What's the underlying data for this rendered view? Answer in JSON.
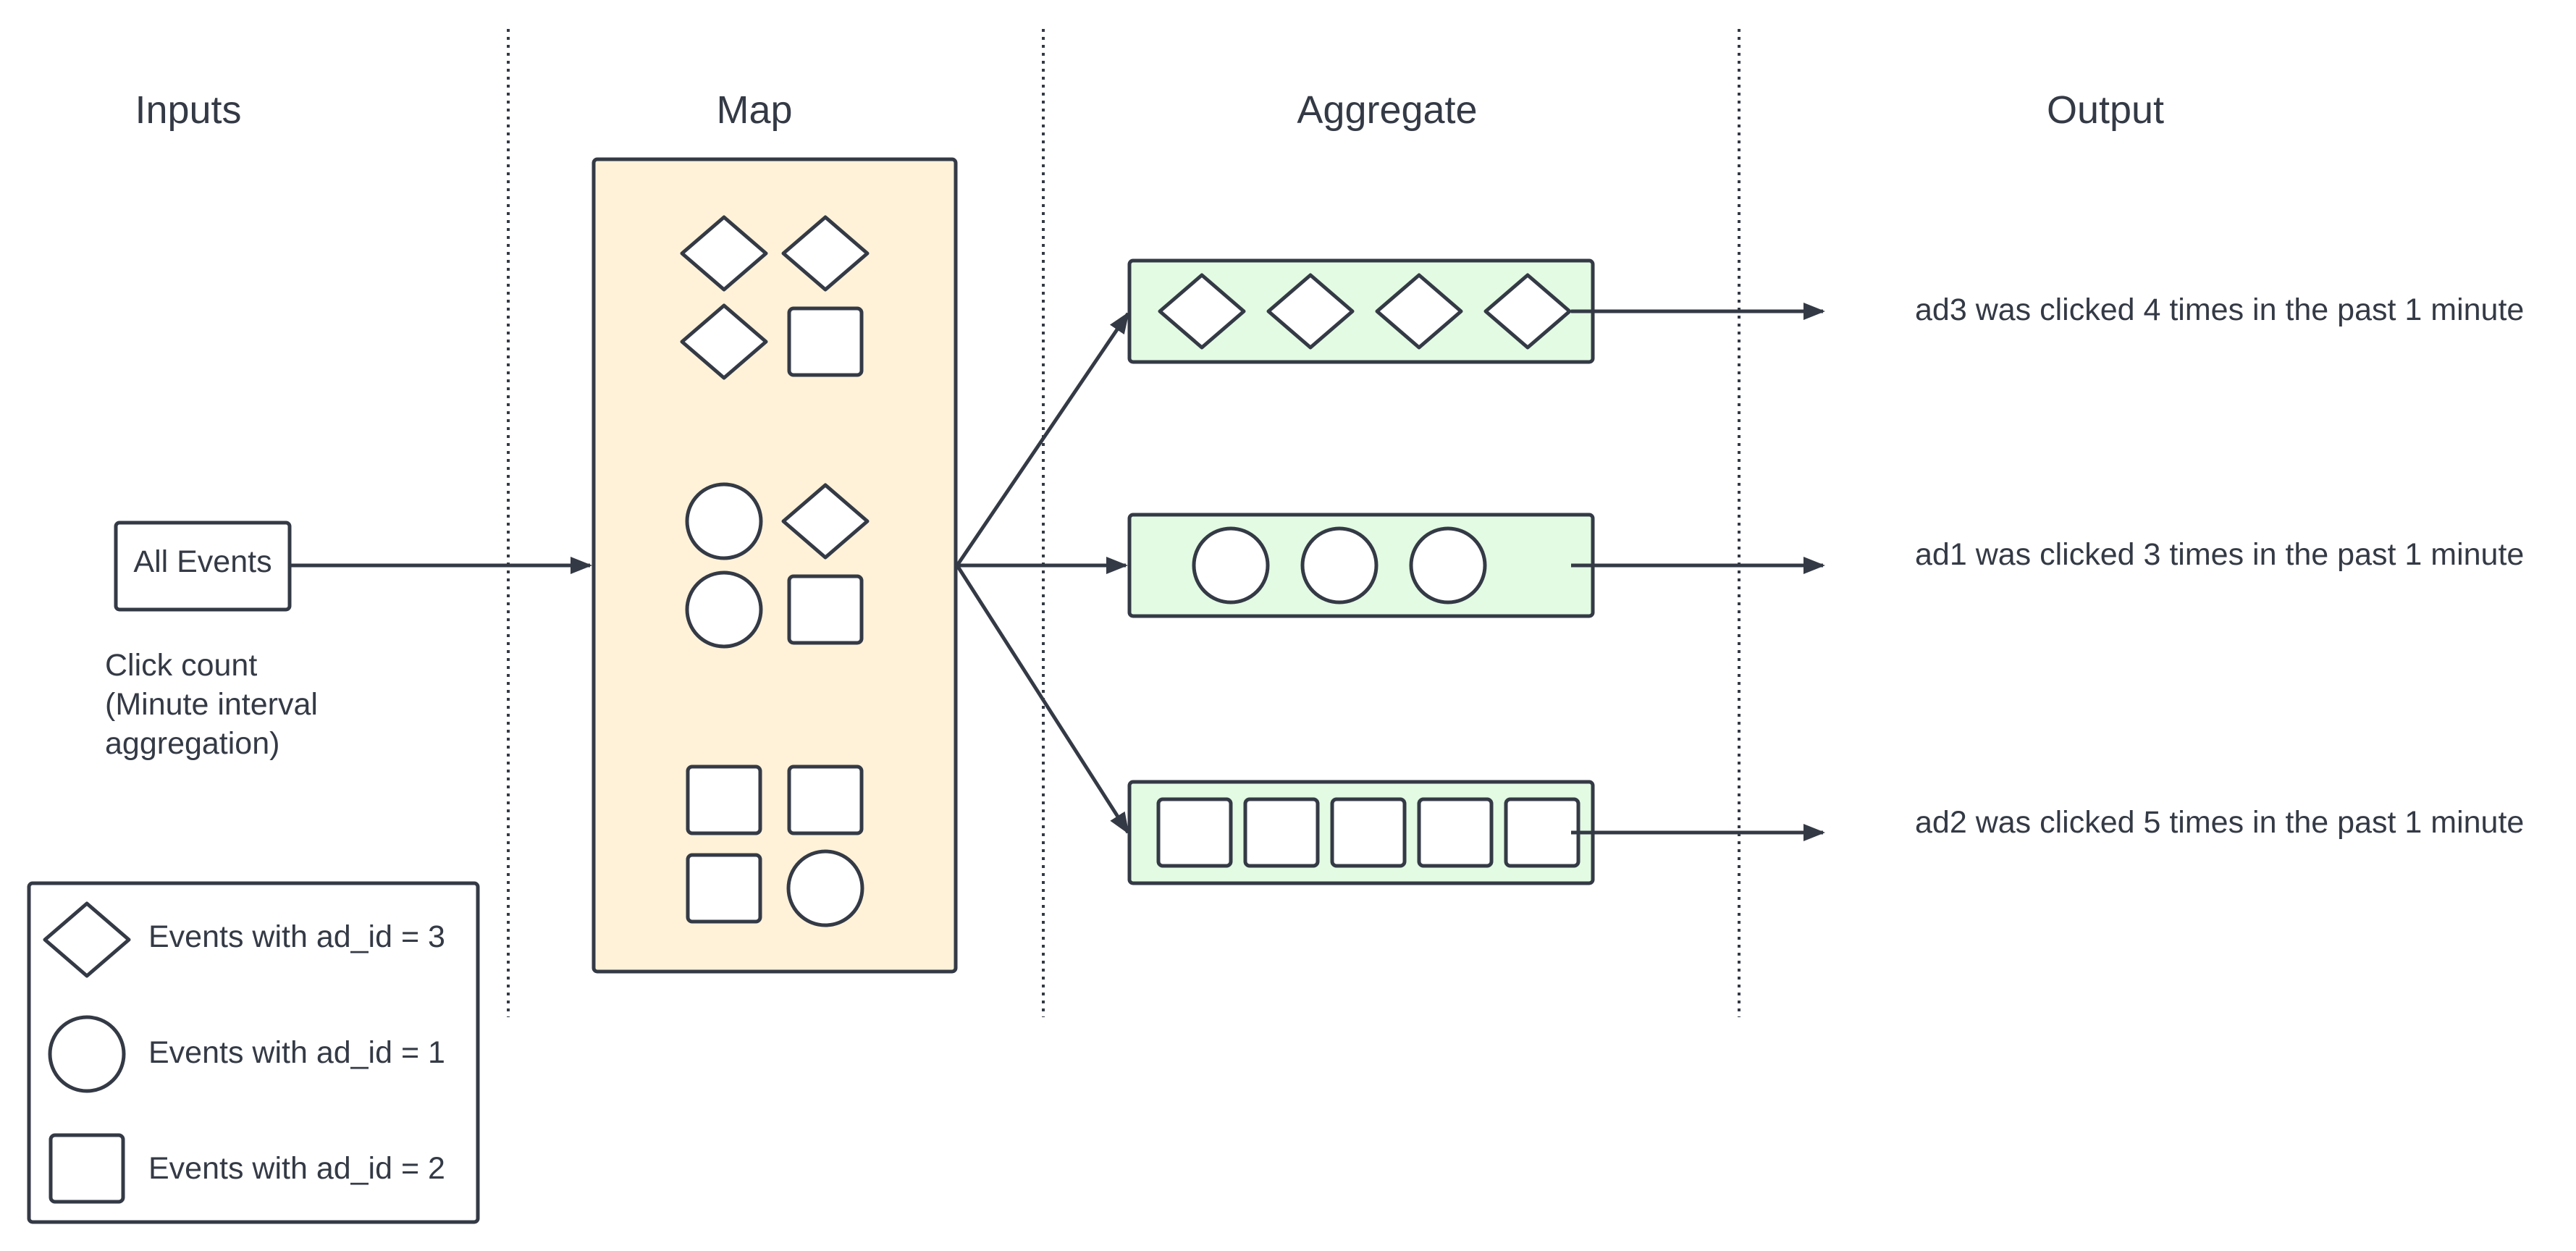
{
  "headers": {
    "inputs": "Inputs",
    "map": "Map",
    "aggregate": "Aggregate",
    "output": "Output"
  },
  "input_box": {
    "label": "All Events",
    "caption_lines": [
      "Click count",
      "(Minute interval",
      "aggregation)"
    ]
  },
  "legend": {
    "items": [
      {
        "shape": "diamond",
        "label": "Events with ad_id = 3"
      },
      {
        "shape": "circle",
        "label": "Events with ad_id = 1"
      },
      {
        "shape": "square",
        "label": "Events with ad_id = 2"
      }
    ]
  },
  "map_groups": [
    [
      "diamond",
      "diamond",
      "diamond",
      "square"
    ],
    [
      "circle",
      "diamond",
      "circle",
      "square"
    ],
    [
      "square",
      "square",
      "square",
      "circle"
    ]
  ],
  "aggregate_rows": [
    {
      "shape": "diamond",
      "count": 4,
      "output": "ad3 was clicked 4 times in the past 1 minute"
    },
    {
      "shape": "circle",
      "count": 3,
      "output": "ad1 was clicked 3 times in the past 1 minute"
    },
    {
      "shape": "square",
      "count": 5,
      "output": "ad2 was clicked 5 times in the past 1 minute"
    }
  ],
  "colors": {
    "map_fill": "#fff2d9",
    "aggregate_fill": "#e3fae3",
    "stroke": "#343a45",
    "text": "#343a45"
  }
}
